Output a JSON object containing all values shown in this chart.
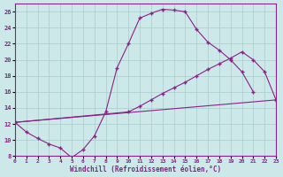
{
  "xlabel": "Windchill (Refroidissement éolien,°C)",
  "bg_color": "#cce8e8",
  "line_color": "#882288",
  "grid_color": "#aacccc",
  "xlim": [
    0,
    23
  ],
  "ylim": [
    8,
    27
  ],
  "yticks": [
    8,
    10,
    12,
    14,
    16,
    18,
    20,
    22,
    24,
    26
  ],
  "xticks": [
    0,
    1,
    2,
    3,
    4,
    5,
    6,
    7,
    8,
    9,
    10,
    11,
    12,
    13,
    14,
    15,
    16,
    17,
    18,
    19,
    20,
    21,
    22,
    23
  ],
  "line1_x": [
    0,
    1,
    2,
    3,
    4,
    5,
    6,
    7,
    8,
    9,
    10,
    11,
    12,
    13,
    14,
    15,
    16,
    17,
    18,
    19,
    20,
    21
  ],
  "line1_y": [
    12.2,
    11.0,
    10.2,
    9.5,
    9.0,
    7.8,
    8.8,
    10.5,
    13.5,
    19.0,
    22.0,
    25.2,
    25.8,
    26.3,
    26.2,
    26.0,
    23.8,
    22.2,
    21.2,
    20.0,
    18.5,
    16.0
  ],
  "line2_x": [
    0,
    10,
    11,
    12,
    13,
    14,
    15,
    16,
    17,
    18,
    19,
    20,
    21,
    22,
    23
  ],
  "line2_y": [
    12.2,
    13.5,
    14.2,
    15.0,
    15.8,
    16.5,
    17.2,
    18.0,
    18.8,
    19.5,
    20.2,
    21.0,
    20.0,
    18.5,
    15.0
  ],
  "line3_x": [
    0,
    23
  ],
  "line3_y": [
    12.2,
    15.0
  ]
}
